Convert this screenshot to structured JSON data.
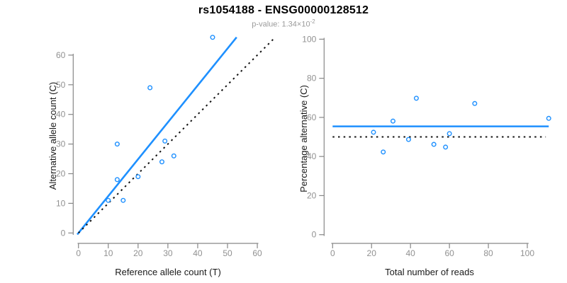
{
  "title": "rs1054188 - ENSG00000128512",
  "subtitle": {
    "label": "p-value: 1.34×10",
    "exponent": "-2"
  },
  "colors": {
    "accent_blue": "#1E90FF",
    "dotted_black": "#111111",
    "axis_gray": "#878787",
    "tick_label_gray": "#919191",
    "axis_title_black": "#1a1a1a",
    "background": "#ffffff"
  },
  "chart_data": [
    {
      "type": "scatter",
      "name": "allele-counts",
      "xlabel": "Reference allele count (T)",
      "ylabel": "Alternative allele count (C)",
      "xlim": [
        0,
        60
      ],
      "ylim": [
        0,
        60
      ],
      "xticks": [
        0,
        10,
        20,
        30,
        40,
        50,
        60
      ],
      "yticks": [
        0,
        10,
        20,
        30,
        40,
        50,
        60
      ],
      "grid": false,
      "legend": "none",
      "points": [
        [
          10,
          11
        ],
        [
          13,
          18
        ],
        [
          13,
          30
        ],
        [
          15,
          11
        ],
        [
          20,
          19
        ],
        [
          24,
          49
        ],
        [
          28,
          24
        ],
        [
          29,
          31
        ],
        [
          32,
          26
        ],
        [
          45,
          66
        ]
      ],
      "lines": [
        {
          "name": "fit-line",
          "kind": "abline",
          "intercept": 0,
          "slope": 1.2445,
          "style": "solid",
          "color_key": "accent_blue",
          "x_range": [
            -0.4,
            53.05
          ]
        },
        {
          "name": "identity-line",
          "kind": "abline",
          "intercept": 0,
          "slope": 1,
          "style": "dotted",
          "color_key": "dotted_black",
          "x_range": [
            0,
            66
          ]
        }
      ]
    },
    {
      "type": "scatter",
      "name": "percentage-vs-reads",
      "xlabel": "Total number of reads",
      "ylabel": "Percentage alternative (C)",
      "xlim": [
        0,
        100
      ],
      "ylim": [
        0,
        100
      ],
      "xticks": [
        0,
        20,
        40,
        60,
        80,
        100
      ],
      "yticks": [
        0,
        20,
        40,
        60,
        80,
        100
      ],
      "grid": false,
      "legend": "none",
      "points": [
        [
          21,
          52.4
        ],
        [
          26,
          42.3
        ],
        [
          31,
          58.1
        ],
        [
          39,
          48.7
        ],
        [
          43,
          69.8
        ],
        [
          52,
          46.2
        ],
        [
          58,
          44.8
        ],
        [
          60,
          51.7
        ],
        [
          73,
          67.1
        ],
        [
          111,
          59.5
        ]
      ],
      "lines": [
        {
          "name": "fit-line",
          "kind": "hline",
          "y": 55.4,
          "style": "solid",
          "color_key": "accent_blue",
          "x_range": [
            0,
            111
          ]
        },
        {
          "name": "null-line",
          "kind": "hline",
          "y": 50,
          "style": "dotted",
          "color_key": "dotted_black",
          "x_range": [
            0,
            109.5
          ]
        }
      ]
    }
  ]
}
